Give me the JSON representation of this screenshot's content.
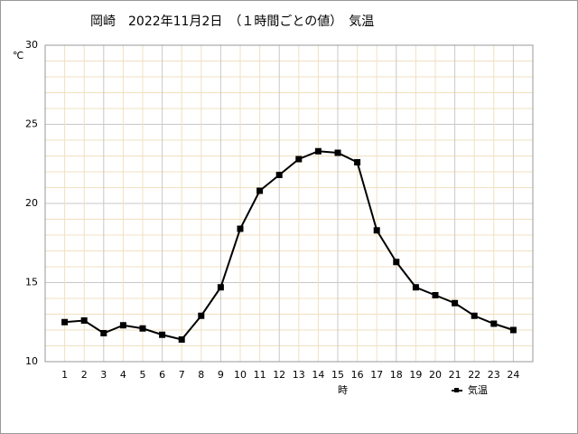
{
  "chart_data": {
    "type": "line",
    "title": "岡崎　2022年11月2日　（１時間ごとの値）　気温",
    "y_unit": "℃",
    "x_label": "時",
    "x": [
      1,
      2,
      3,
      4,
      5,
      6,
      7,
      8,
      9,
      10,
      11,
      12,
      13,
      14,
      15,
      16,
      17,
      18,
      19,
      20,
      21,
      22,
      23,
      24
    ],
    "series": [
      {
        "name": "気温",
        "color": "#000000",
        "values": [
          12.5,
          12.6,
          11.8,
          12.3,
          12.1,
          11.7,
          11.4,
          12.9,
          14.7,
          18.4,
          20.8,
          21.8,
          22.8,
          23.3,
          23.2,
          22.6,
          18.3,
          16.3,
          14.7,
          14.2,
          13.7,
          12.9,
          12.4,
          12.0
        ]
      }
    ],
    "xlim": [
      0,
      25
    ],
    "xticks": [
      1,
      2,
      3,
      4,
      5,
      6,
      7,
      8,
      9,
      10,
      11,
      12,
      13,
      14,
      15,
      16,
      17,
      18,
      19,
      20,
      21,
      22,
      23,
      24
    ],
    "ylim": [
      10,
      30
    ],
    "yticks": [
      10,
      15,
      20,
      25,
      30
    ],
    "grid": true
  }
}
